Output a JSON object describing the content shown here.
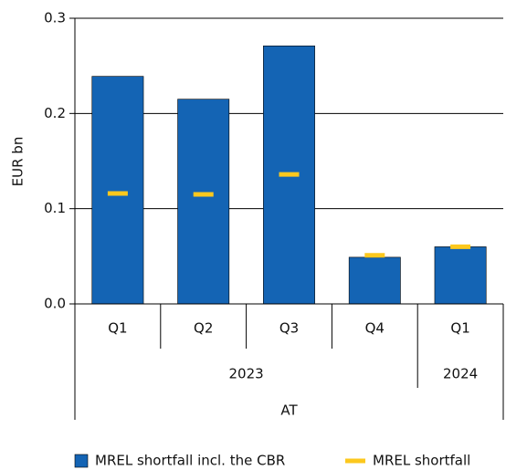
{
  "chart_data": {
    "type": "bar",
    "y_label": "EUR bn",
    "group_label": "AT",
    "groups": [
      {
        "name": "2023",
        "categories": [
          "Q1",
          "Q2",
          "Q3",
          "Q4"
        ]
      },
      {
        "name": "2024",
        "categories": [
          "Q1"
        ]
      }
    ],
    "series": [
      {
        "name": "MREL shortfall incl. the CBR",
        "type": "bar",
        "color": "#1464b4",
        "values": [
          0.239,
          0.215,
          0.271,
          0.049,
          0.06
        ]
      },
      {
        "name": "MREL shortfall",
        "type": "marker",
        "color": "#fcc81e",
        "values": [
          0.116,
          0.115,
          0.136,
          0.051,
          0.06
        ]
      }
    ],
    "ylim": [
      0,
      0.3
    ],
    "yticks": [
      {
        "value": 0,
        "label": "0.0"
      },
      0.1,
      0.2,
      0.3
    ],
    "grid": true
  }
}
